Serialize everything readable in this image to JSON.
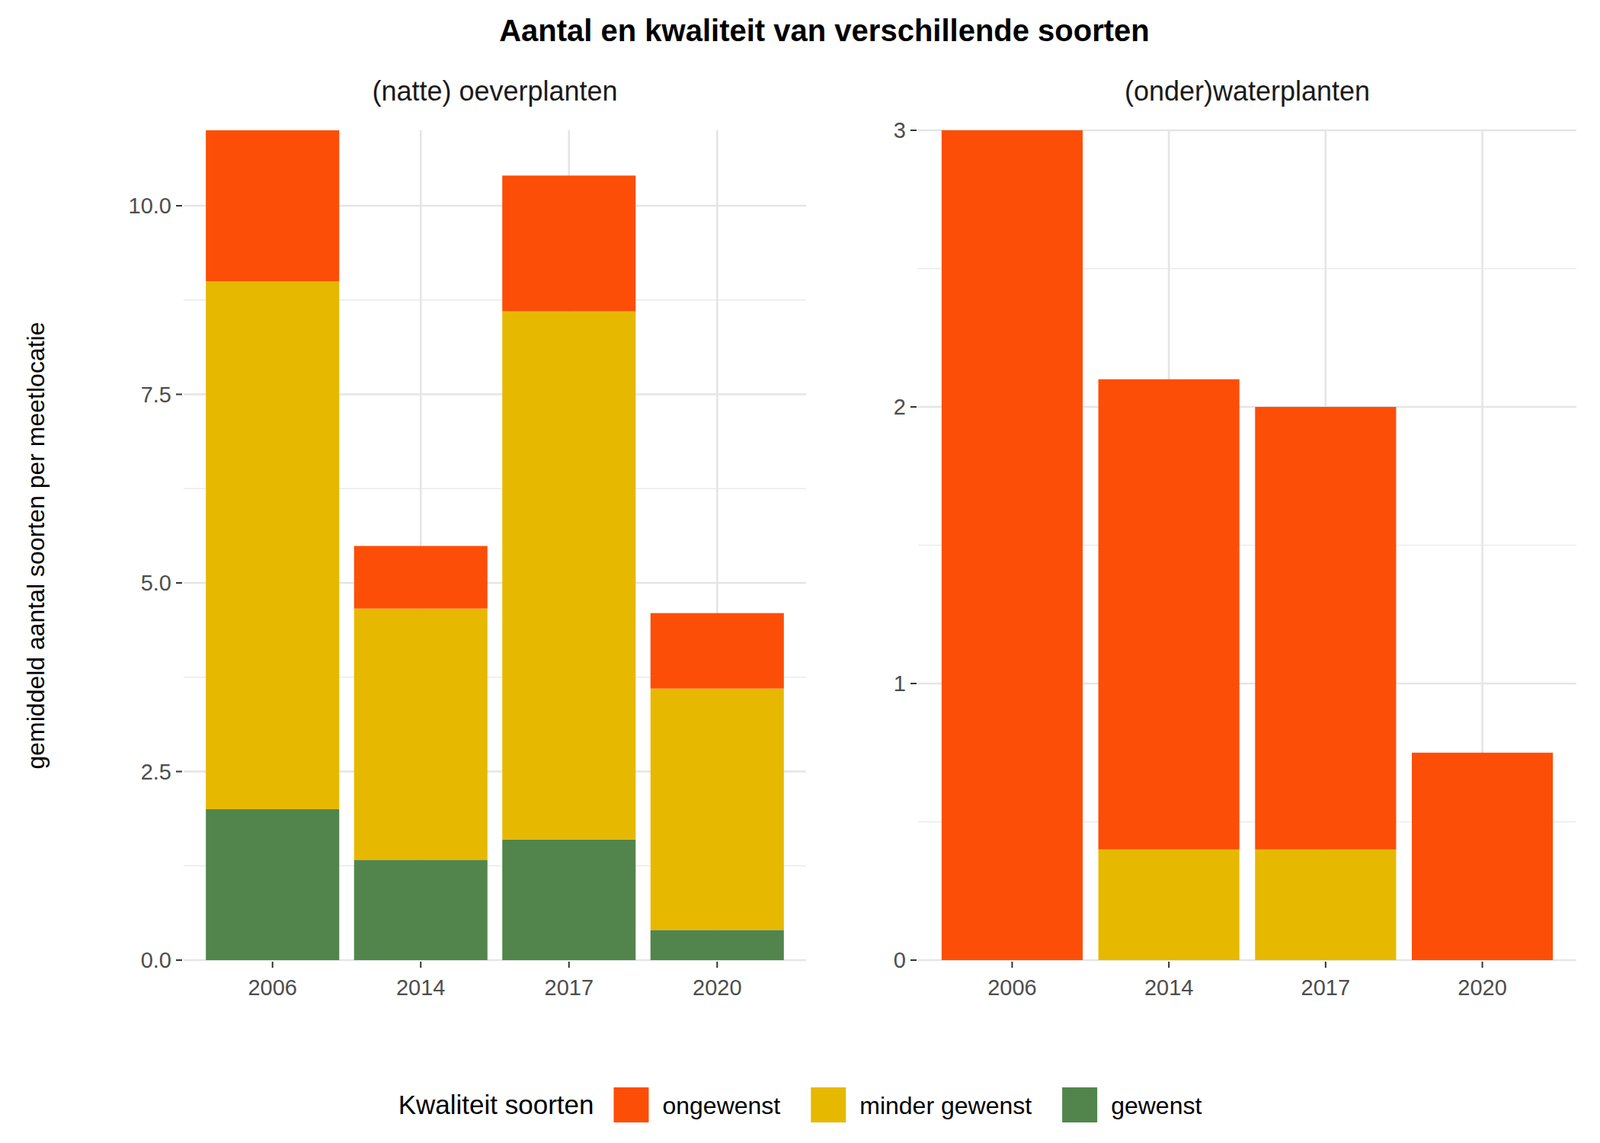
{
  "chart_data": {
    "type": "bar",
    "stacked": true,
    "grid": true,
    "title": "Aantal en kwaliteit van verschillende soorten",
    "y_label": "gemiddeld aantal soorten per meetlocatie",
    "legend": "bottom",
    "legend_title": "Kwaliteit soorten",
    "categories": [
      "2006",
      "2014",
      "2017",
      "2020"
    ],
    "series": [
      {
        "name": "ongewenst",
        "color": "#FC4E07"
      },
      {
        "name": "minder gewenst",
        "color": "#E7B800"
      },
      {
        "name": "gewenst",
        "color": "#52854C"
      }
    ],
    "panels": [
      {
        "subtitle": "(natte) oeverplanten",
        "ylim": [
          0,
          11
        ],
        "yticks": [
          {
            "value": 0,
            "label": "0.0"
          },
          2.5,
          {
            "value": 5,
            "label": "5.0"
          },
          7.5,
          {
            "value": 10,
            "label": "10.0"
          }
        ],
        "series": [
          {
            "values": [
              2.0,
              0.83,
              1.8,
              1.0
            ]
          },
          {
            "values": [
              7.0,
              3.33,
              7.0,
              3.2
            ]
          },
          {
            "values": [
              2.0,
              1.33,
              1.6,
              0.4
            ]
          }
        ]
      },
      {
        "subtitle": "(onder)waterplanten",
        "ylim": [
          0,
          3
        ],
        "yticks": [
          0,
          1,
          2,
          3
        ],
        "series": [
          {
            "values": [
              3,
              1.7,
              1.6,
              0.75
            ]
          },
          {
            "values": [
              0,
              0.4,
              0.4,
              0
            ]
          },
          {
            "values": [
              0,
              0,
              0,
              0
            ]
          }
        ]
      }
    ]
  }
}
